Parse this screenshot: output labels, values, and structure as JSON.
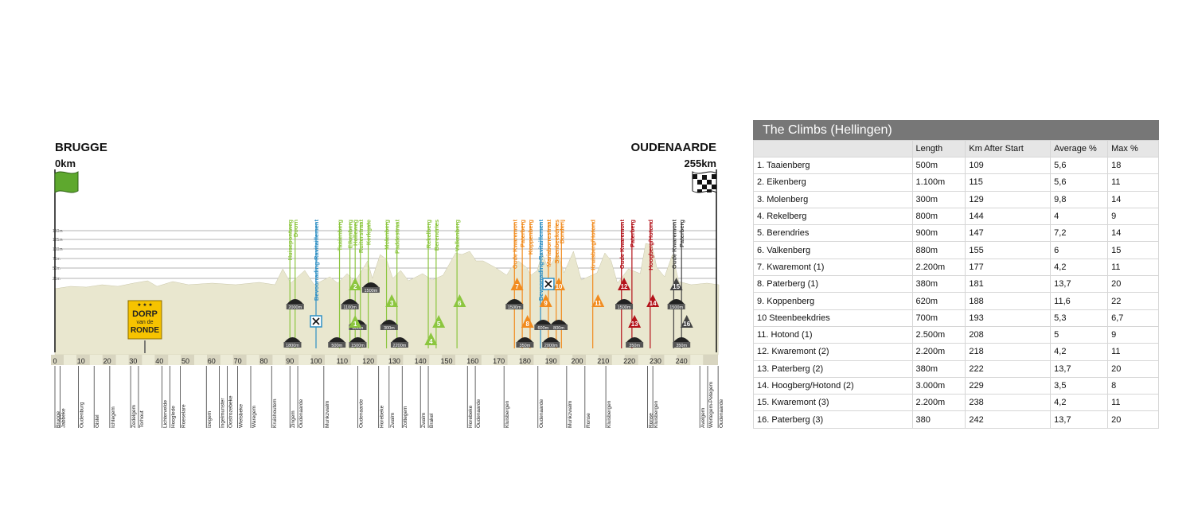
{
  "profile": {
    "start": {
      "name": "BRUGGE",
      "km": "0km"
    },
    "finish": {
      "name": "OUDENAARDE",
      "km": "255km"
    },
    "altitude_labels": [
      "150m",
      "125m",
      "100m",
      "75m",
      "50m",
      "25m"
    ],
    "axis_ticks": [
      "0",
      "10",
      "20",
      "30",
      "40",
      "50",
      "60",
      "70",
      "80",
      "90",
      "100",
      "110",
      "120",
      "130",
      "140",
      "150",
      "160",
      "170",
      "180",
      "190",
      "200",
      "210",
      "220",
      "230",
      "240"
    ],
    "town_labels": [
      {
        "name": "Brugge",
        "km": 0
      },
      {
        "name": "Jabbeke",
        "km": 2
      },
      {
        "name": "Oudenburg",
        "km": 9
      },
      {
        "name": "Gistel",
        "km": 15
      },
      {
        "name": "Ichtegem",
        "km": 21
      },
      {
        "name": "Zedelgem",
        "km": 29
      },
      {
        "name": "Torhout",
        "km": 32
      },
      {
        "name": "Lichtervelde",
        "km": 41
      },
      {
        "name": "Hooglede",
        "km": 44
      },
      {
        "name": "Roeselare",
        "km": 48
      },
      {
        "name": "Izegem",
        "km": 58
      },
      {
        "name": "Ingelmunster",
        "km": 63
      },
      {
        "name": "Oostrozebeke",
        "km": 66
      },
      {
        "name": "Wielsbeke",
        "km": 70
      },
      {
        "name": "Waregem",
        "km": 75
      },
      {
        "name": "Kruishoutem",
        "km": 83
      },
      {
        "name": "Zingem",
        "km": 90
      },
      {
        "name": "Oudenaarde",
        "km": 93
      },
      {
        "name": "Munkzwalm",
        "km": 103
      },
      {
        "name": "Oudenaarde",
        "km": 116
      },
      {
        "name": "Horebeke",
        "km": 124
      },
      {
        "name": "Zwalm",
        "km": 128
      },
      {
        "name": "Zottegem",
        "km": 133
      },
      {
        "name": "Zwalm",
        "km": 140
      },
      {
        "name": "Brakel",
        "km": 143
      },
      {
        "name": "Horebeke",
        "km": 158
      },
      {
        "name": "Oudenaarde",
        "km": 161
      },
      {
        "name": "Kluisbergen",
        "km": 172
      },
      {
        "name": "Oudenaarde",
        "km": 185
      },
      {
        "name": "Munkzwalm",
        "km": 196
      },
      {
        "name": "Ronse",
        "km": 203
      },
      {
        "name": "Kluisbergen",
        "km": 211
      },
      {
        "name": "Ronse",
        "km": 227
      },
      {
        "name": "Kluisbergen",
        "km": 229
      },
      {
        "name": "Avelgem",
        "km": 247
      },
      {
        "name": "Wortegem-Petegem",
        "km": 250
      },
      {
        "name": "Oudenaarde",
        "km": 254
      }
    ],
    "climb_markers": [
      {
        "num": "1",
        "km": 115,
        "color": "#8cc63f",
        "level": 2
      },
      {
        "num": "2",
        "km": 115,
        "color": "#8cc63f",
        "level": 0
      },
      {
        "num": "3",
        "km": 129,
        "color": "#8cc63f",
        "level": 1
      },
      {
        "num": "4",
        "km": 144,
        "color": "#8cc63f",
        "level": 3
      },
      {
        "num": "5",
        "km": 147,
        "color": "#8cc63f",
        "level": 2
      },
      {
        "num": "6",
        "km": 155,
        "color": "#8cc63f",
        "level": 1
      },
      {
        "num": "7",
        "km": 177,
        "color": "#f18b1e",
        "level": 0
      },
      {
        "num": "8",
        "km": 181,
        "color": "#f18b1e",
        "level": 2
      },
      {
        "num": "9",
        "km": 188,
        "color": "#f18b1e",
        "level": 1
      },
      {
        "num": "10",
        "km": 193,
        "color": "#f18b1e",
        "level": 0
      },
      {
        "num": "11",
        "km": 208,
        "color": "#f18b1e",
        "level": 1
      },
      {
        "num": "12",
        "km": 218,
        "color": "#b3121a",
        "level": 0
      },
      {
        "num": "13",
        "km": 222,
        "color": "#b3121a",
        "level": 2
      },
      {
        "num": "14",
        "km": 229,
        "color": "#b3121a",
        "level": 1
      },
      {
        "num": "15",
        "km": 238,
        "color": "#444444",
        "level": 0
      },
      {
        "num": "16",
        "km": 242,
        "color": "#444444",
        "level": 2
      }
    ],
    "cobble_sectors": [
      {
        "km": 91,
        "label": "1800m",
        "level": 3
      },
      {
        "km": 92,
        "label": "2000m",
        "level": 1
      },
      {
        "km": 108,
        "label": "500m",
        "level": 3
      },
      {
        "km": 113,
        "label": "1100m",
        "level": 1
      },
      {
        "km": 116,
        "label": "800m",
        "level": 2
      },
      {
        "km": 116,
        "label": "1500m",
        "level": 3
      },
      {
        "km": 121,
        "label": "1500m",
        "level": 0
      },
      {
        "km": 128,
        "label": "300m",
        "level": 2
      },
      {
        "km": 132,
        "label": "2200m",
        "level": 3
      },
      {
        "km": 176,
        "label": "1500m",
        "level": 1
      },
      {
        "km": 180,
        "label": "350m",
        "level": 3
      },
      {
        "km": 187,
        "label": "600m",
        "level": 2
      },
      {
        "km": 190,
        "label": "2000m",
        "level": 3
      },
      {
        "km": 193,
        "label": "800m",
        "level": 2
      },
      {
        "km": 218,
        "label": "1500m",
        "level": 1
      },
      {
        "km": 222,
        "label": "350m",
        "level": 3
      },
      {
        "km": 238,
        "label": "1500m",
        "level": 1
      },
      {
        "km": 240,
        "label": "350m",
        "level": 3
      }
    ],
    "top_labels": [
      {
        "text": "Huisepontweg",
        "km": 90,
        "color": "#8cc63f"
      },
      {
        "text": "Doorn",
        "km": 92,
        "color": "#8cc63f"
      },
      {
        "text": "Bevoorrading-Ravitaillement",
        "km": 100,
        "color": "#2e8fc4"
      },
      {
        "text": "Taaienberg",
        "km": 109,
        "color": "#8cc63f"
      },
      {
        "text": "Eikenberg",
        "km": 113,
        "color": "#8cc63f"
      },
      {
        "text": "Holleweg",
        "km": 115,
        "color": "#8cc63f"
      },
      {
        "text": "Ruiterstraat",
        "km": 117,
        "color": "#8cc63f"
      },
      {
        "text": "Kerkgate",
        "km": 120,
        "color": "#8cc63f"
      },
      {
        "text": "Molenberg",
        "km": 127,
        "color": "#8cc63f"
      },
      {
        "text": "Paddestraat",
        "km": 131,
        "color": "#8cc63f"
      },
      {
        "text": "Rekelberg",
        "km": 143,
        "color": "#8cc63f"
      },
      {
        "text": "Berendries",
        "km": 146,
        "color": "#8cc63f"
      },
      {
        "text": "Valkenberg",
        "km": 154,
        "color": "#8cc63f"
      },
      {
        "text": "Oude Kwaremont",
        "km": 176,
        "color": "#f18b1e"
      },
      {
        "text": "Paterberg",
        "km": 179,
        "color": "#f18b1e"
      },
      {
        "text": "Koppenberg",
        "km": 182,
        "color": "#f18b1e"
      },
      {
        "text": "Bevoorrading-Ravitaillement",
        "km": 186,
        "color": "#2e8fc4"
      },
      {
        "text": "Mariaborrestraat",
        "km": 189,
        "color": "#f18b1e"
      },
      {
        "text": "Steenbeekdries",
        "km": 192,
        "color": "#f18b1e"
      },
      {
        "text": "Donderij",
        "km": 194,
        "color": "#f18b1e"
      },
      {
        "text": "Kruisberg/Hotond",
        "km": 206,
        "color": "#f18b1e"
      },
      {
        "text": "Oude Kwaremont",
        "km": 217,
        "color": "#b3121a"
      },
      {
        "text": "Paterberg",
        "km": 221,
        "color": "#b3121a"
      },
      {
        "text": "Hoogberg/Hotond",
        "km": 228,
        "color": "#b3121a"
      },
      {
        "text": "Oude Kwaremont",
        "km": 237,
        "color": "#444444"
      },
      {
        "text": "Paterberg",
        "km": 240,
        "color": "#444444"
      }
    ],
    "feed_zones": [
      {
        "km": 100,
        "level": 2
      },
      {
        "km": 189,
        "level": 0
      }
    ],
    "sign": {
      "line1": "DORP",
      "line2": "van de",
      "line3": "RONDE",
      "km": 35
    }
  },
  "climbs": {
    "title": "The Climbs (Hellingen)",
    "columns": [
      "",
      "Length",
      "Km After Start",
      "Average %",
      "Max %"
    ],
    "rows": [
      [
        "1. Taaienberg",
        "500m",
        "109",
        "5,6",
        "18"
      ],
      [
        "2. Eikenberg",
        "1.100m",
        "115",
        "5,6",
        "11"
      ],
      [
        "3. Molenberg",
        "300m",
        "129",
        "9,8",
        "14"
      ],
      [
        "4. Rekelberg",
        "800m",
        "144",
        "4",
        "9"
      ],
      [
        "5. Berendries",
        "900m",
        "147",
        "7,2",
        "14"
      ],
      [
        "6. Valkenberg",
        "880m",
        "155",
        "6",
        "15"
      ],
      [
        "7. Kwaremont (1)",
        "2.200m",
        "177",
        "4,2",
        "11"
      ],
      [
        "8. Paterberg (1)",
        "380m",
        "181",
        "13,7",
        "20"
      ],
      [
        "9. Koppenberg",
        "620m",
        "188",
        "11,6",
        "22"
      ],
      [
        "10 Steenbeekdries",
        "700m",
        "193",
        "5,3",
        "6,7"
      ],
      [
        "11. Hotond (1)",
        "2.500m",
        "208",
        "5",
        "9"
      ],
      [
        "12. Kwaremont (2)",
        "2.200m",
        "218",
        "4,2",
        "11"
      ],
      [
        "13. Paterberg (2)",
        "380m",
        "222",
        "13,7",
        "20"
      ],
      [
        "14. Hoogberg/Hotond (2)",
        "3.000m",
        "229",
        "3,5",
        "8"
      ],
      [
        "15. Kwaremont (3)",
        "2.200m",
        "238",
        "4,2",
        "11"
      ],
      [
        "16. Paterberg (3)",
        "380",
        "242",
        "13,7",
        "20"
      ]
    ]
  }
}
